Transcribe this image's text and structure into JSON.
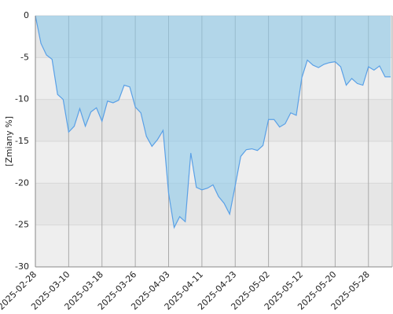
{
  "chart_data": {
    "type": "area",
    "y_label": "[Zmiany %]",
    "categories": [
      "2025-02-28",
      null,
      null,
      null,
      null,
      null,
      "2025-03-10",
      null,
      null,
      null,
      null,
      null,
      "2025-03-18",
      null,
      null,
      null,
      null,
      null,
      "2025-03-26",
      null,
      null,
      null,
      null,
      null,
      "2025-04-03",
      null,
      null,
      null,
      null,
      null,
      "2025-04-11",
      null,
      null,
      null,
      null,
      null,
      "2025-04-23",
      null,
      null,
      null,
      null,
      null,
      "2025-05-02",
      null,
      null,
      null,
      null,
      null,
      "2025-05-12",
      null,
      null,
      null,
      null,
      null,
      "2025-05-20",
      null,
      null,
      null,
      null,
      null,
      "2025-05-28",
      null,
      null,
      null,
      null
    ],
    "values": [
      0,
      -3.3,
      -4.7,
      -5.2,
      -9.4,
      -10,
      -13.9,
      -13.2,
      -11.1,
      -13.2,
      -11.5,
      -11,
      -12.6,
      -10.2,
      -10.4,
      -10.1,
      -8.3,
      -8.5,
      -10.9,
      -11.6,
      -14.4,
      -15.6,
      -14.8,
      -13.7,
      -21.2,
      -25.3,
      -24,
      -24.6,
      -16.4,
      -20.5,
      -20.8,
      -20.6,
      -20.2,
      -21.6,
      -22.4,
      -23.7,
      -20.3,
      -16.8,
      -16,
      -15.9,
      -16.1,
      -15.5,
      -12.4,
      -12.4,
      -13.3,
      -12.9,
      -11.6,
      -11.9,
      -7.4,
      -5.3,
      -5.9,
      -6.2,
      -5.8,
      -5.6,
      -5.5,
      -6.1,
      -8.3,
      -7.5,
      -8.1,
      -8.3,
      -6.1,
      -6.5,
      -6,
      -7.3,
      -7.3
    ],
    "color": "#5aa0e6",
    "fill": "rgba(135,200,235,0.55)",
    "ylim": [
      -30,
      0
    ],
    "yticks": [
      0,
      -5,
      -10,
      -15,
      -20,
      -25,
      -30
    ],
    "grid": true
  }
}
